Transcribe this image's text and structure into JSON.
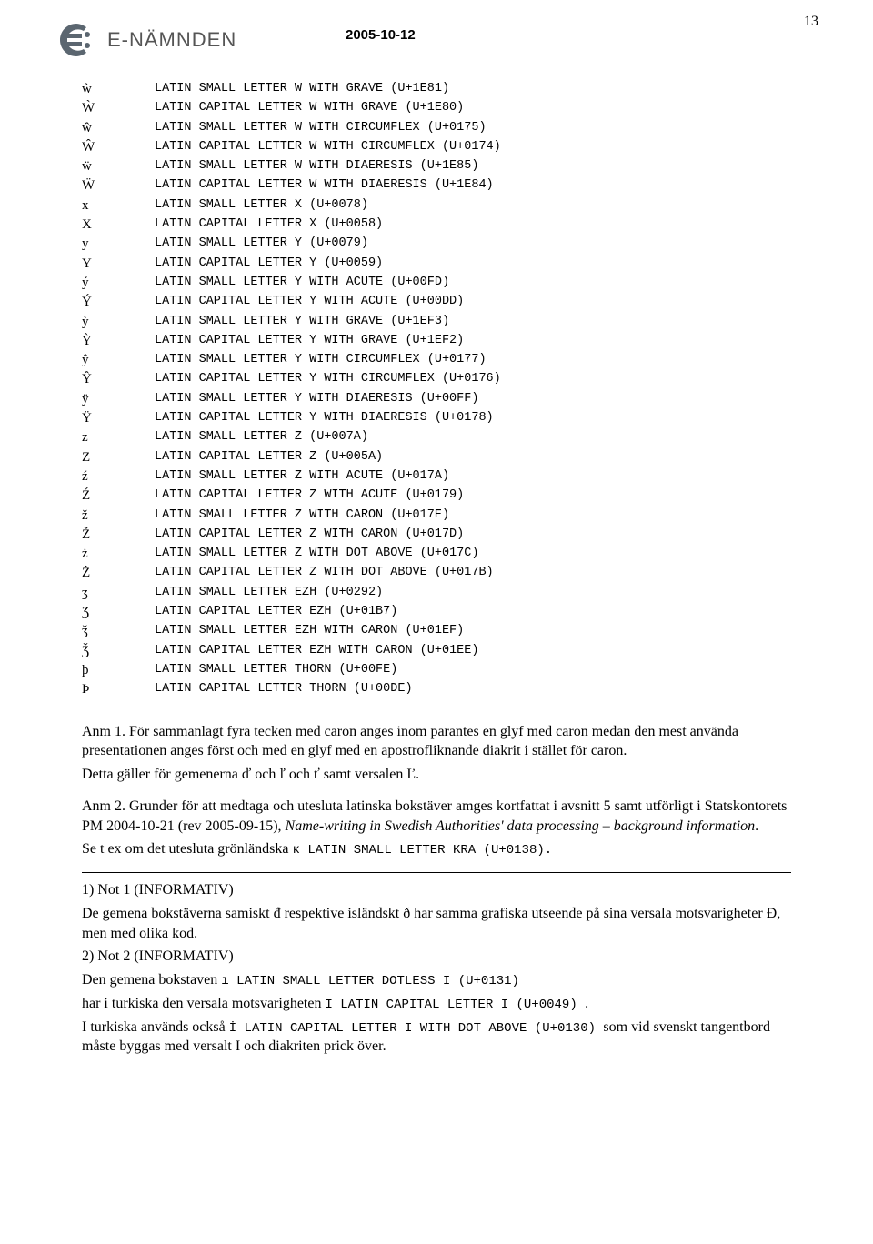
{
  "header": {
    "logo_text": "E-NÄMNDEN",
    "date": "2005-10-12",
    "page_number": "13"
  },
  "char_rows": [
    {
      "glyph": "ẁ",
      "desc": "LATIN SMALL LETTER W WITH GRAVE (U+1E81)"
    },
    {
      "glyph": "Ẁ",
      "desc": "LATIN CAPITAL LETTER W WITH GRAVE (U+1E80)"
    },
    {
      "glyph": "ŵ",
      "desc": "LATIN SMALL LETTER W WITH CIRCUMFLEX (U+0175)"
    },
    {
      "glyph": "Ŵ",
      "desc": "LATIN CAPITAL LETTER W WITH CIRCUMFLEX (U+0174)"
    },
    {
      "glyph": "ẅ",
      "desc": "LATIN SMALL LETTER W WITH DIAERESIS (U+1E85)"
    },
    {
      "glyph": "Ẅ",
      "desc": "LATIN CAPITAL LETTER W WITH DIAERESIS (U+1E84)"
    },
    {
      "glyph": "x",
      "desc": "LATIN SMALL LETTER X (U+0078)"
    },
    {
      "glyph": "X",
      "desc": "LATIN CAPITAL LETTER X (U+0058)"
    },
    {
      "glyph": "y",
      "desc": "LATIN SMALL LETTER Y (U+0079)"
    },
    {
      "glyph": "Y",
      "desc": "LATIN CAPITAL LETTER Y (U+0059)"
    },
    {
      "glyph": "ý",
      "desc": "LATIN SMALL LETTER Y WITH ACUTE (U+00FD)"
    },
    {
      "glyph": "Ý",
      "desc": "LATIN CAPITAL LETTER Y WITH ACUTE (U+00DD)"
    },
    {
      "glyph": "ỳ",
      "desc": "LATIN SMALL LETTER Y WITH GRAVE (U+1EF3)"
    },
    {
      "glyph": "Ỳ",
      "desc": "LATIN CAPITAL LETTER Y WITH GRAVE (U+1EF2)"
    },
    {
      "glyph": "ŷ",
      "desc": "LATIN SMALL LETTER Y WITH CIRCUMFLEX (U+0177)"
    },
    {
      "glyph": "Ŷ",
      "desc": "LATIN CAPITAL LETTER Y WITH CIRCUMFLEX (U+0176)"
    },
    {
      "glyph": "ÿ",
      "desc": "LATIN SMALL LETTER Y WITH DIAERESIS (U+00FF)"
    },
    {
      "glyph": "Ÿ",
      "desc": "LATIN CAPITAL LETTER Y WITH DIAERESIS (U+0178)"
    },
    {
      "glyph": "z",
      "desc": "LATIN SMALL LETTER Z (U+007A)"
    },
    {
      "glyph": "Z",
      "desc": "LATIN CAPITAL LETTER Z (U+005A)"
    },
    {
      "glyph": "ź",
      "desc": "LATIN SMALL LETTER Z WITH ACUTE (U+017A)"
    },
    {
      "glyph": "Ź",
      "desc": "LATIN CAPITAL LETTER Z WITH ACUTE (U+0179)"
    },
    {
      "glyph": "ž",
      "desc": "LATIN SMALL LETTER Z WITH CARON (U+017E)"
    },
    {
      "glyph": "Ž",
      "desc": "LATIN CAPITAL LETTER Z WITH CARON (U+017D)"
    },
    {
      "glyph": "ż",
      "desc": "LATIN SMALL LETTER Z WITH DOT ABOVE (U+017C)"
    },
    {
      "glyph": "Ż",
      "desc": "LATIN CAPITAL LETTER Z WITH DOT ABOVE (U+017B)"
    },
    {
      "glyph": "ʒ",
      "desc": "LATIN SMALL LETTER EZH (U+0292)"
    },
    {
      "glyph": "Ʒ",
      "desc": "LATIN CAPITAL LETTER EZH (U+01B7)"
    },
    {
      "glyph": "ǯ",
      "desc": "LATIN SMALL LETTER EZH WITH CARON (U+01EF)"
    },
    {
      "glyph": "Ǯ",
      "desc": "LATIN CAPITAL LETTER EZH WITH CARON (U+01EE)"
    },
    {
      "glyph": "þ",
      "desc": "LATIN SMALL LETTER THORN (U+00FE)"
    },
    {
      "glyph": "Þ",
      "desc": "LATIN CAPITAL LETTER THORN (U+00DE)"
    }
  ],
  "anm1": {
    "p1": "Anm 1.  För sammanlagt fyra tecken med caron anges inom parantes en glyf med caron medan den mest använda presentationen anges först och med en glyf med en apostrofliknande diakrit i stället för caron.",
    "p2": "Detta gäller för gemenerna ď och ľ och ť  samt versalen Ľ."
  },
  "anm2": {
    "p1a": "Anm 2.  Grunder för att medtaga och utesluta latinska bokstäver amges kortfattat i avsnitt 5 samt utförligt i Statskontorets PM 2004-10-21 (rev 2005-09-15), ",
    "p1b_italic": "Name-writing in Swedish Authorities' data processing – background information",
    "p1c": ".",
    "p2a": " Se t ex om det utesluta grönländska  ",
    "p2b_mono": "ĸ  LATIN SMALL LETTER KRA (U+0138).",
    "p2c": ""
  },
  "notes": {
    "n1_title": "1) Not 1 (INFORMATIV)",
    "n1_body": "De gemena bokstäverna samiskt đ respektive isländskt ð har samma grafiska utseende på sina versala motsvarigheter Đ, men med olika kod.",
    "n2_title": "2) Not 2 (INFORMATIV)",
    "n2_l1a": "Den gemena bokstaven ",
    "n2_l1b_mono": "ı LATIN SMALL LETTER DOTLESS I (U+0131)",
    "n2_l2a": "har i turkiska den versala motsvarigheten ",
    "n2_l2b_mono": "I LATIN CAPITAL LETTER I (U+0049) ",
    "n2_l2c": ".",
    "n2_l3a": "I turkiska används också ",
    "n2_l3b_mono": "İ LATIN CAPITAL LETTER I WITH DOT ABOVE (U+0130) ",
    "n2_l3c": "som vid svenskt tangentbord måste byggas med versalt I och diakriten prick över."
  }
}
